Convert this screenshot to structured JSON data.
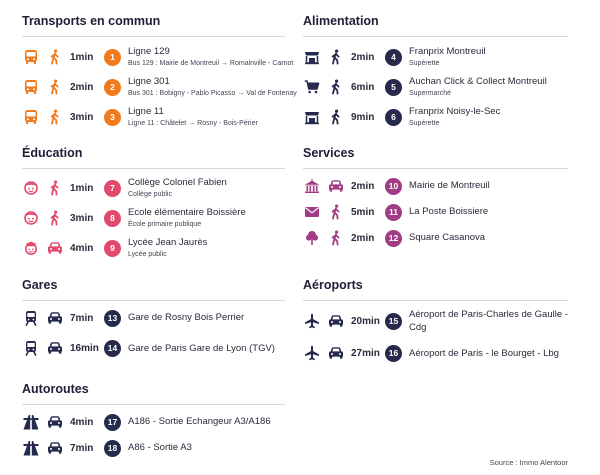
{
  "colors": {
    "transport": "#f07b1e",
    "education": "#e14a6d",
    "services": "#a13d84",
    "navy": "#262a4d",
    "ink": "#2a2a3a",
    "rule": "#d6d6de"
  },
  "sections": {
    "transports": {
      "title": "Transports en commun",
      "items": [
        {
          "icon": "bus-icon",
          "mode": "walk-icon",
          "duration": "1min",
          "num": "1",
          "name": "Ligne 129",
          "sub": "Bus 129 : Mairie de Montreuil → Romainville - Carnot"
        },
        {
          "icon": "bus-icon",
          "mode": "walk-icon",
          "duration": "2min",
          "num": "2",
          "name": "Ligne 301",
          "sub": "Bus 301 : Bobigny - Pablo Picasso → Val de Fontenay"
        },
        {
          "icon": "bus-icon",
          "mode": "walk-icon",
          "duration": "3min",
          "num": "3",
          "name": "Ligne 11",
          "sub": "Ligne 11 : Châtelet → Rosny - Bois-Périer"
        }
      ]
    },
    "alimentation": {
      "title": "Alimentation",
      "items": [
        {
          "icon": "store-icon",
          "mode": "walk-icon",
          "duration": "2min",
          "num": "4",
          "name": "Franprix Montreuil",
          "sub": "Supérette"
        },
        {
          "icon": "cart-icon",
          "mode": "walk-icon",
          "duration": "6min",
          "num": "5",
          "name": "Auchan Click & Collect Montreuil",
          "sub": "Supermarché"
        },
        {
          "icon": "store-icon",
          "mode": "walk-icon",
          "duration": "9min",
          "num": "6",
          "name": "Franprix Noisy-le-Sec",
          "sub": "Supérette"
        }
      ]
    },
    "education": {
      "title": "Éducation",
      "items": [
        {
          "icon": "child-icon",
          "mode": "walk-icon",
          "duration": "1min",
          "num": "7",
          "name": "Collège Colonel Fabien",
          "sub": "Collège public"
        },
        {
          "icon": "child-icon",
          "mode": "walk-icon",
          "duration": "3min",
          "num": "8",
          "name": "Ecole élémentaire Boissière",
          "sub": "École primaire publique"
        },
        {
          "icon": "student-icon",
          "mode": "car-icon",
          "duration": "4min",
          "num": "9",
          "name": "Lycée Jean Jaurès",
          "sub": "Lycée public"
        }
      ]
    },
    "services": {
      "title": "Services",
      "items": [
        {
          "icon": "townhall-icon",
          "mode": "car-icon",
          "duration": "2min",
          "num": "10",
          "name": "Mairie de Montreuil"
        },
        {
          "icon": "mail-icon",
          "mode": "walk-icon",
          "duration": "5min",
          "num": "11",
          "name": "La Poste Boissiere"
        },
        {
          "icon": "tree-icon",
          "mode": "walk-icon",
          "duration": "2min",
          "num": "12",
          "name": "Square Casanova"
        }
      ]
    },
    "gares": {
      "title": "Gares",
      "items": [
        {
          "icon": "train-icon",
          "mode": "car-icon",
          "duration": "7min",
          "num": "13",
          "name": "Gare de Rosny Bois Perrier"
        },
        {
          "icon": "train-icon",
          "mode": "car-icon",
          "duration": "16min",
          "num": "14",
          "name": "Gare de Paris Gare de Lyon (TGV)"
        }
      ]
    },
    "aeroports": {
      "title": "Aéroports",
      "items": [
        {
          "icon": "plane-icon",
          "mode": "car-icon",
          "duration": "20min",
          "num": "15",
          "name": "Aéroport de Paris-Charles de Gaulle - Cdg"
        },
        {
          "icon": "plane-icon",
          "mode": "car-icon",
          "duration": "27min",
          "num": "16",
          "name": "Aéroport de Paris - le Bourget - Lbg"
        }
      ]
    },
    "autoroutes": {
      "title": "Autoroutes",
      "items": [
        {
          "icon": "highway-icon",
          "mode": "car-icon",
          "duration": "4min",
          "num": "17",
          "name": "A186 - Sortie Echangeur A3/A186"
        },
        {
          "icon": "highway-icon",
          "mode": "car-icon",
          "duration": "7min",
          "num": "18",
          "name": "A86 - Sortie A3"
        }
      ]
    }
  },
  "source": "Source : Immo Alentoor"
}
